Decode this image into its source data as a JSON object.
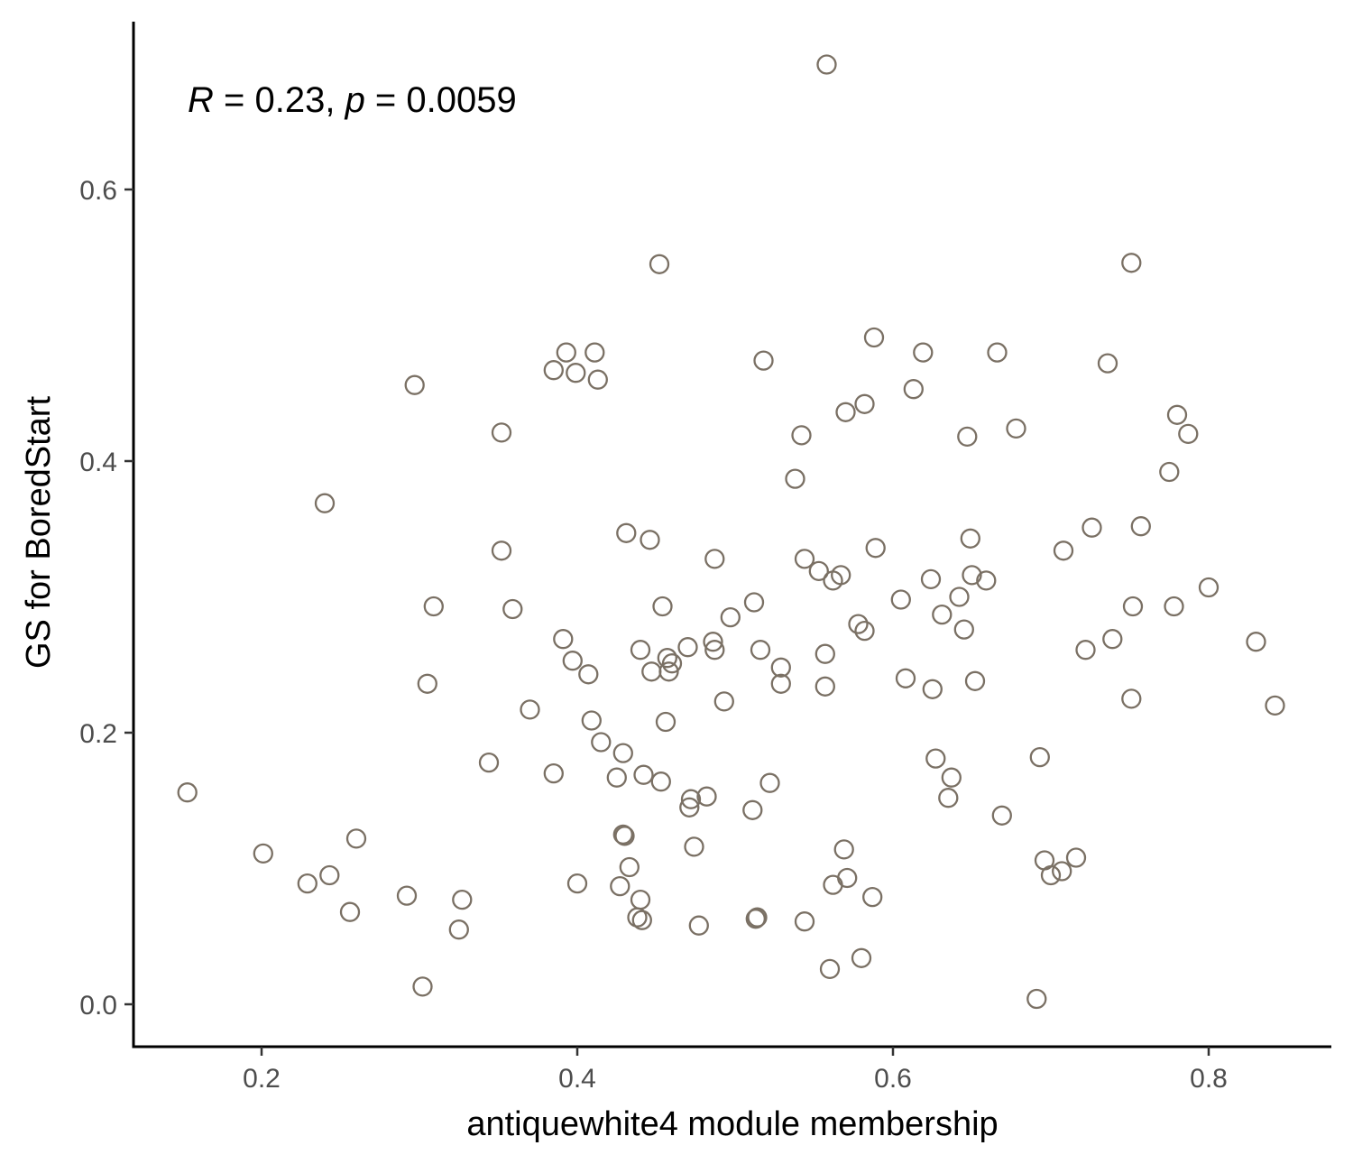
{
  "chart_data": {
    "type": "scatter",
    "xlabel": "antiquewhite4 module membership",
    "ylabel": "GS for BoredStart",
    "annotation": {
      "r_symbol": "R",
      "r_value": " = 0.23, ",
      "p_symbol": "p",
      "p_value": " = 0.0059"
    },
    "xlim": [
      0.12,
      0.88
    ],
    "ylim": [
      -0.03,
      0.7
    ],
    "x_ticks": [
      "0.2",
      "0.4",
      "0.6",
      "0.8"
    ],
    "y_ticks": [
      "0.0",
      "0.2",
      "0.4",
      "0.6"
    ],
    "grid": false,
    "legend": "none",
    "point_color": "#7a7064",
    "points": [
      [
        0.153,
        0.156
      ],
      [
        0.201,
        0.111
      ],
      [
        0.229,
        0.089
      ],
      [
        0.24,
        0.369
      ],
      [
        0.243,
        0.095
      ],
      [
        0.256,
        0.068
      ],
      [
        0.26,
        0.122
      ],
      [
        0.292,
        0.08
      ],
      [
        0.297,
        0.456
      ],
      [
        0.302,
        0.013
      ],
      [
        0.305,
        0.236
      ],
      [
        0.309,
        0.293
      ],
      [
        0.325,
        0.055
      ],
      [
        0.327,
        0.077
      ],
      [
        0.344,
        0.178
      ],
      [
        0.352,
        0.421
      ],
      [
        0.352,
        0.334
      ],
      [
        0.359,
        0.291
      ],
      [
        0.37,
        0.217
      ],
      [
        0.385,
        0.17
      ],
      [
        0.385,
        0.467
      ],
      [
        0.391,
        0.269
      ],
      [
        0.393,
        0.48
      ],
      [
        0.397,
        0.253
      ],
      [
        0.399,
        0.465
      ],
      [
        0.4,
        0.089
      ],
      [
        0.407,
        0.243
      ],
      [
        0.409,
        0.209
      ],
      [
        0.411,
        0.48
      ],
      [
        0.413,
        0.46
      ],
      [
        0.415,
        0.193
      ],
      [
        0.425,
        0.167
      ],
      [
        0.427,
        0.087
      ],
      [
        0.429,
        0.125
      ],
      [
        0.429,
        0.185
      ],
      [
        0.43,
        0.124
      ],
      [
        0.431,
        0.347
      ],
      [
        0.433,
        0.101
      ],
      [
        0.438,
        0.064
      ],
      [
        0.44,
        0.077
      ],
      [
        0.44,
        0.261
      ],
      [
        0.441,
        0.062
      ],
      [
        0.442,
        0.169
      ],
      [
        0.446,
        0.342
      ],
      [
        0.447,
        0.245
      ],
      [
        0.452,
        0.545
      ],
      [
        0.453,
        0.164
      ],
      [
        0.454,
        0.293
      ],
      [
        0.456,
        0.208
      ],
      [
        0.457,
        0.255
      ],
      [
        0.458,
        0.245
      ],
      [
        0.46,
        0.251
      ],
      [
        0.47,
        0.263
      ],
      [
        0.471,
        0.145
      ],
      [
        0.472,
        0.151
      ],
      [
        0.474,
        0.116
      ],
      [
        0.477,
        0.058
      ],
      [
        0.482,
        0.153
      ],
      [
        0.486,
        0.267
      ],
      [
        0.487,
        0.261
      ],
      [
        0.487,
        0.328
      ],
      [
        0.493,
        0.223
      ],
      [
        0.497,
        0.285
      ],
      [
        0.511,
        0.143
      ],
      [
        0.512,
        0.296
      ],
      [
        0.513,
        0.063
      ],
      [
        0.514,
        0.064
      ],
      [
        0.516,
        0.261
      ],
      [
        0.518,
        0.474
      ],
      [
        0.522,
        0.163
      ],
      [
        0.529,
        0.248
      ],
      [
        0.529,
        0.236
      ],
      [
        0.538,
        0.387
      ],
      [
        0.542,
        0.419
      ],
      [
        0.544,
        0.328
      ],
      [
        0.544,
        0.061
      ],
      [
        0.553,
        0.319
      ],
      [
        0.557,
        0.258
      ],
      [
        0.557,
        0.234
      ],
      [
        0.558,
        0.692
      ],
      [
        0.56,
        0.026
      ],
      [
        0.562,
        0.312
      ],
      [
        0.562,
        0.088
      ],
      [
        0.567,
        0.316
      ],
      [
        0.569,
        0.114
      ],
      [
        0.57,
        0.436
      ],
      [
        0.571,
        0.093
      ],
      [
        0.578,
        0.28
      ],
      [
        0.58,
        0.034
      ],
      [
        0.582,
        0.442
      ],
      [
        0.582,
        0.275
      ],
      [
        0.587,
        0.079
      ],
      [
        0.588,
        0.491
      ],
      [
        0.589,
        0.336
      ],
      [
        0.605,
        0.298
      ],
      [
        0.608,
        0.24
      ],
      [
        0.613,
        0.453
      ],
      [
        0.619,
        0.48
      ],
      [
        0.624,
        0.313
      ],
      [
        0.625,
        0.232
      ],
      [
        0.627,
        0.181
      ],
      [
        0.631,
        0.287
      ],
      [
        0.635,
        0.152
      ],
      [
        0.637,
        0.167
      ],
      [
        0.642,
        0.3
      ],
      [
        0.645,
        0.276
      ],
      [
        0.647,
        0.418
      ],
      [
        0.649,
        0.343
      ],
      [
        0.65,
        0.316
      ],
      [
        0.652,
        0.238
      ],
      [
        0.659,
        0.312
      ],
      [
        0.666,
        0.48
      ],
      [
        0.669,
        0.139
      ],
      [
        0.678,
        0.424
      ],
      [
        0.691,
        0.004
      ],
      [
        0.693,
        0.182
      ],
      [
        0.696,
        0.106
      ],
      [
        0.7,
        0.095
      ],
      [
        0.707,
        0.098
      ],
      [
        0.708,
        0.334
      ],
      [
        0.716,
        0.108
      ],
      [
        0.722,
        0.261
      ],
      [
        0.726,
        0.351
      ],
      [
        0.736,
        0.472
      ],
      [
        0.739,
        0.269
      ],
      [
        0.751,
        0.546
      ],
      [
        0.751,
        0.225
      ],
      [
        0.752,
        0.293
      ],
      [
        0.757,
        0.352
      ],
      [
        0.775,
        0.392
      ],
      [
        0.778,
        0.293
      ],
      [
        0.78,
        0.434
      ],
      [
        0.787,
        0.42
      ],
      [
        0.8,
        0.307
      ],
      [
        0.83,
        0.267
      ],
      [
        0.842,
        0.22
      ]
    ]
  }
}
